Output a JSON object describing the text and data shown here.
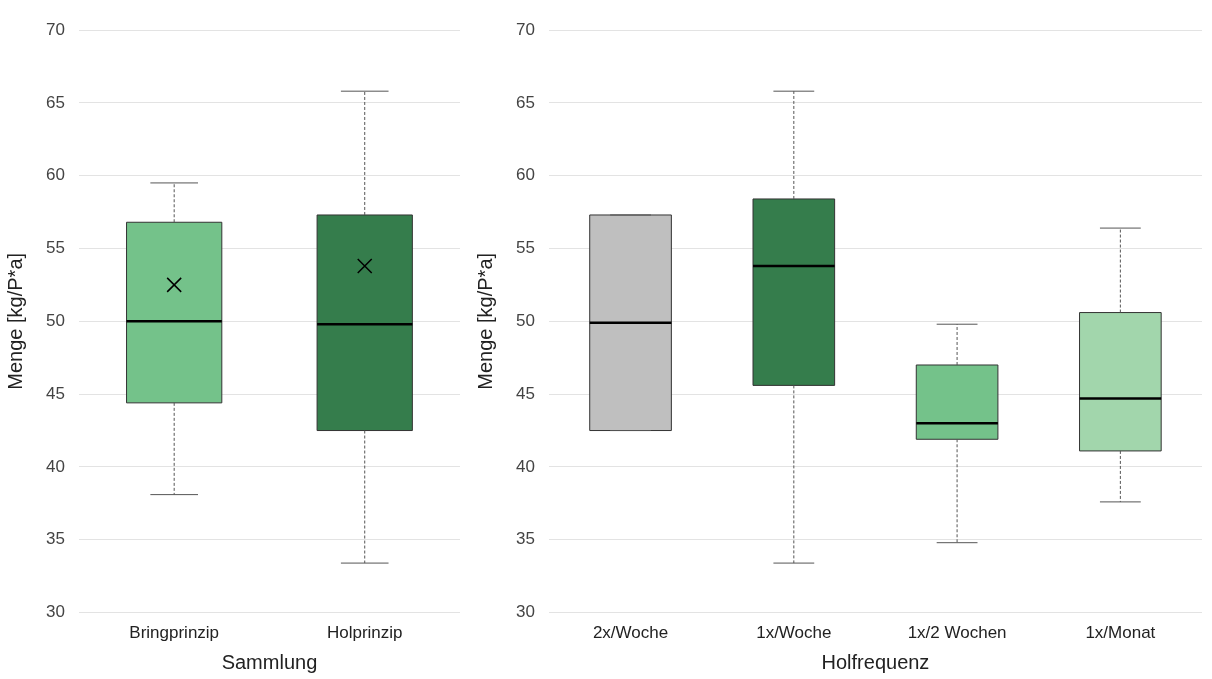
{
  "chart_data": [
    {
      "type": "box",
      "xlabel": "Sammlung",
      "ylabel": "Menge [kg/P*a]",
      "categories": [
        "Bringprinzip",
        "Holprinzip"
      ],
      "colors": [
        "#74c28a",
        "#357d4c"
      ],
      "boxes": [
        {
          "low": 38.1,
          "q1": 44.4,
          "median": 50.0,
          "q3": 56.8,
          "high": 59.5,
          "mean": 52.5
        },
        {
          "low": 33.4,
          "q1": 42.5,
          "median": 49.8,
          "q3": 57.3,
          "high": 65.8,
          "mean": 53.8
        }
      ],
      "ylim": [
        30,
        70
      ],
      "yticks": [
        30,
        35,
        40,
        45,
        50,
        55,
        60,
        65,
        70
      ],
      "grid": "y",
      "legend": false
    },
    {
      "type": "box",
      "xlabel": "Holfrequenz",
      "ylabel": "Menge [kg/P*a]",
      "categories": [
        "2x/Woche",
        "1x/Woche",
        "1x/2 Wochen",
        "1x/Monat"
      ],
      "colors": [
        "#bfbfbf",
        "#357d4c",
        "#74c28a",
        "#a2d6ac"
      ],
      "boxes": [
        {
          "low": 42.5,
          "q1": 42.5,
          "median": 49.9,
          "q3": 57.3,
          "high": 57.3
        },
        {
          "low": 33.4,
          "q1": 45.6,
          "median": 53.8,
          "q3": 58.4,
          "high": 65.8
        },
        {
          "low": 34.8,
          "q1": 41.9,
          "median": 43.0,
          "q3": 47.0,
          "high": 49.8
        },
        {
          "low": 37.6,
          "q1": 41.1,
          "median": 44.7,
          "q3": 50.6,
          "high": 56.4
        }
      ],
      "ylim": [
        30,
        70
      ],
      "yticks": [
        30,
        35,
        40,
        45,
        50,
        55,
        60,
        65,
        70
      ],
      "grid": "y",
      "legend": false
    }
  ]
}
